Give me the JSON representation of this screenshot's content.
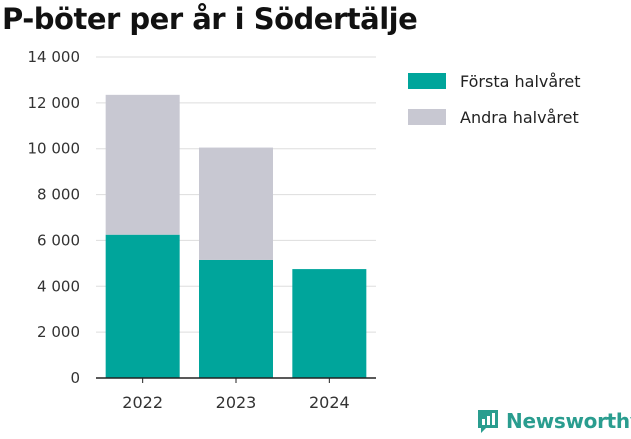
{
  "title": "P-böter per år i Södertälje",
  "brand": {
    "name": "Newsworthy",
    "icon": "newsworthy-chart-logo-icon"
  },
  "colors": {
    "first_half": "#00a59b",
    "second_half": "#c8c8d2",
    "grid": "#dddddd",
    "axis": "#222222",
    "brand": "#2a9d8f"
  },
  "legend": [
    {
      "label": "Första halvåret",
      "color": "#00a59b"
    },
    {
      "label": "Andra halvåret",
      "color": "#c8c8d2"
    }
  ],
  "chart_data": {
    "type": "bar",
    "stacked": true,
    "title": "P-böter per år i Södertälje",
    "categories": [
      "2022",
      "2023",
      "2024"
    ],
    "series": [
      {
        "name": "Första halvåret",
        "values": [
          6250,
          5150,
          4750
        ]
      },
      {
        "name": "Andra halvåret",
        "values": [
          6100,
          4900,
          0
        ]
      }
    ],
    "ylim": [
      0,
      14000
    ],
    "yticks": [
      0,
      2000,
      4000,
      6000,
      8000,
      10000,
      12000,
      14000
    ],
    "ytick_labels": [
      "0",
      "2 000",
      "4 000",
      "6 000",
      "8 000",
      "10 000",
      "12 000",
      "14 000"
    ],
    "xlabel": "",
    "ylabel": "",
    "grid": true,
    "legend_position": "right"
  }
}
